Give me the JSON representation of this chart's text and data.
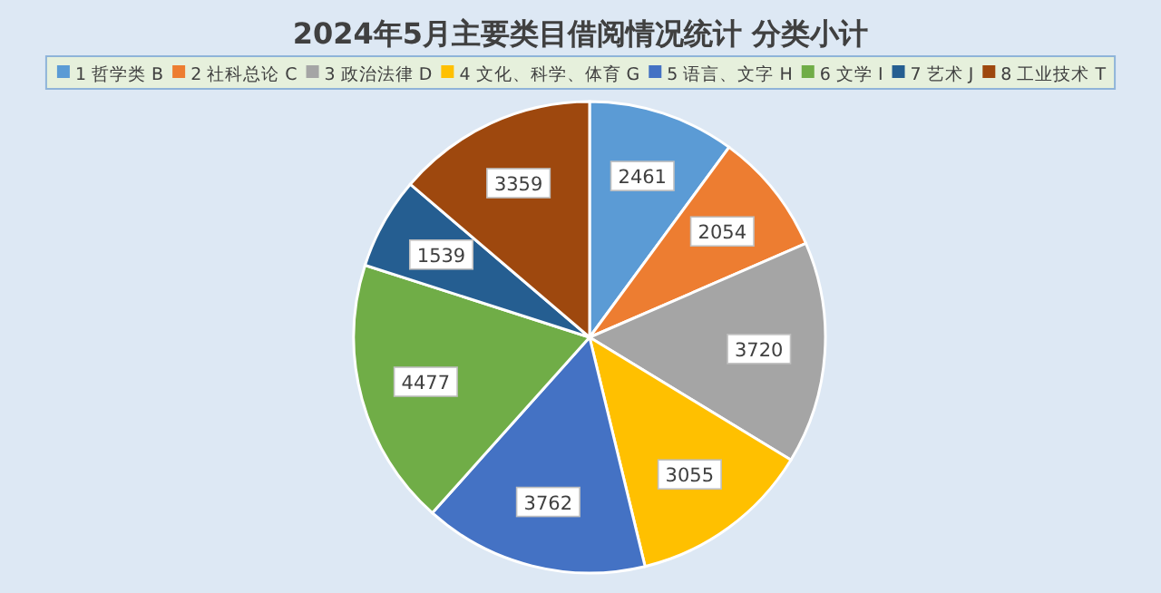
{
  "chart_data": {
    "type": "pie",
    "title": "2024年5月主要类目借阅情况统计 分类小计",
    "categories": [
      "1 哲学类 B",
      "2 社科总论 C",
      "3 政治法律 D",
      "4 文化、科学、体育 G",
      "5 语言、文字 H",
      "6 文学 I",
      "7 艺术 J",
      "8 工业技术 T"
    ],
    "values": [
      2461,
      2054,
      3720,
      3055,
      3762,
      4477,
      1539,
      3359
    ],
    "colors": [
      "#5b9bd5",
      "#ed7d31",
      "#a5a5a5",
      "#ffc000",
      "#4472c4",
      "#70ad47",
      "#255e91",
      "#9e480e"
    ],
    "data_labels": true,
    "legend": "top"
  }
}
